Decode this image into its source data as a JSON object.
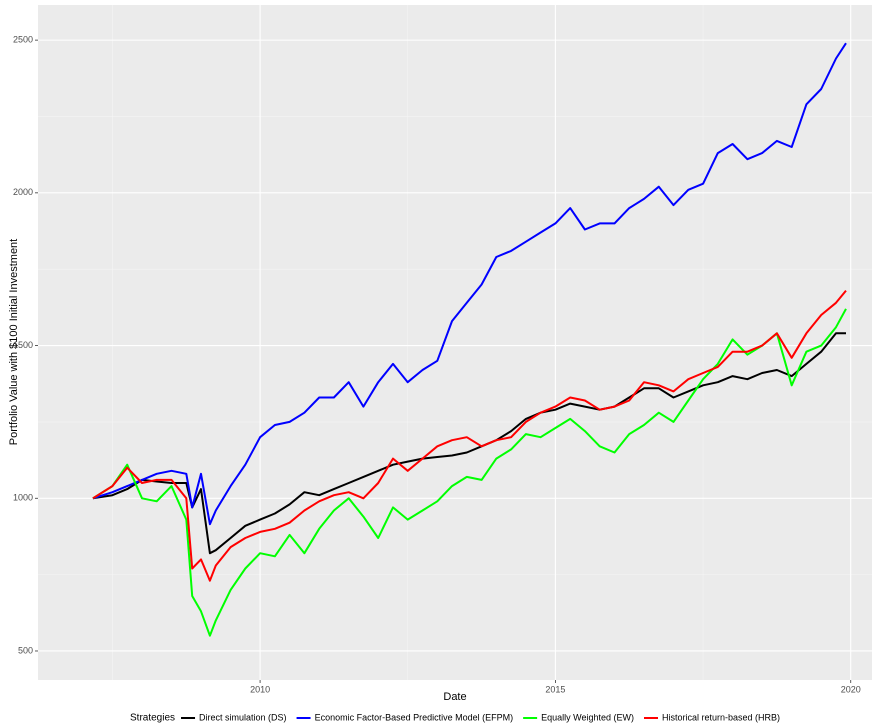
{
  "chart_data": {
    "type": "line",
    "x_label": "Date",
    "y_label": "Portfolio Value with $100 Initial Investment",
    "legend_title": "Strategies",
    "legend_position": "bottom",
    "grid": true,
    "xlim": [
      2006.24,
      2020.36
    ],
    "ylim": [
      405,
      2615
    ],
    "xticks": [
      2010,
      2015,
      2020
    ],
    "yticks": [
      500,
      1000,
      1500,
      2000,
      2500
    ],
    "x": [
      2007.17,
      2007.5,
      2007.75,
      2008,
      2008.25,
      2008.5,
      2008.75,
      2008.85,
      2009,
      2009.15,
      2009.25,
      2009.5,
      2009.75,
      2010,
      2010.25,
      2010.5,
      2010.75,
      2011,
      2011.25,
      2011.5,
      2011.75,
      2012,
      2012.25,
      2012.5,
      2012.75,
      2013,
      2013.25,
      2013.5,
      2013.75,
      2014,
      2014.25,
      2014.5,
      2014.75,
      2015,
      2015.25,
      2015.5,
      2015.75,
      2016,
      2016.25,
      2016.5,
      2016.75,
      2017,
      2017.25,
      2017.5,
      2017.75,
      2018,
      2018.25,
      2018.5,
      2018.75,
      2019,
      2019.25,
      2019.5,
      2019.75,
      2019.92
    ],
    "series": [
      {
        "name": "Direct simulation (DS)",
        "color": "#000000",
        "values": [
          1000,
          1010,
          1030,
          1060,
          1055,
          1050,
          1050,
          970,
          1030,
          820,
          830,
          870,
          910,
          930,
          950,
          980,
          1020,
          1010,
          1030,
          1050,
          1070,
          1090,
          1110,
          1120,
          1130,
          1135,
          1140,
          1150,
          1170,
          1190,
          1220,
          1260,
          1280,
          1290,
          1310,
          1300,
          1290,
          1300,
          1330,
          1360,
          1360,
          1330,
          1350,
          1370,
          1380,
          1400,
          1390,
          1410,
          1420,
          1400,
          1440,
          1480,
          1540,
          1540
        ]
      },
      {
        "name": "Economic Factor-Based Predictive Model (EFPM)",
        "color": "#0000ff",
        "values": [
          1000,
          1020,
          1040,
          1060,
          1080,
          1090,
          1080,
          970,
          1080,
          915,
          960,
          1040,
          1110,
          1200,
          1240,
          1250,
          1280,
          1330,
          1330,
          1380,
          1300,
          1380,
          1440,
          1380,
          1420,
          1450,
          1580,
          1640,
          1700,
          1790,
          1810,
          1840,
          1870,
          1900,
          1950,
          1880,
          1900,
          1900,
          1950,
          1980,
          2020,
          1960,
          2010,
          2030,
          2130,
          2160,
          2110,
          2130,
          2170,
          2150,
          2290,
          2340,
          2440,
          2490
        ]
      },
      {
        "name": "Equally Weighted (EW)",
        "color": "#00ff00",
        "values": [
          1000,
          1040,
          1110,
          1000,
          990,
          1040,
          930,
          680,
          630,
          550,
          600,
          700,
          770,
          820,
          810,
          880,
          820,
          900,
          960,
          1000,
          940,
          870,
          970,
          930,
          960,
          990,
          1040,
          1070,
          1060,
          1130,
          1160,
          1210,
          1200,
          1230,
          1260,
          1220,
          1170,
          1150,
          1210,
          1240,
          1280,
          1250,
          1320,
          1390,
          1440,
          1520,
          1470,
          1500,
          1540,
          1370,
          1480,
          1500,
          1560,
          1620
        ]
      },
      {
        "name": "Historical return-based (HRB)",
        "color": "#ff0000",
        "values": [
          1000,
          1040,
          1100,
          1050,
          1060,
          1060,
          1000,
          770,
          800,
          730,
          780,
          840,
          870,
          890,
          900,
          920,
          960,
          990,
          1010,
          1020,
          1000,
          1050,
          1130,
          1090,
          1130,
          1170,
          1190,
          1200,
          1170,
          1190,
          1200,
          1250,
          1280,
          1300,
          1330,
          1320,
          1290,
          1300,
          1320,
          1380,
          1370,
          1350,
          1390,
          1410,
          1430,
          1480,
          1480,
          1500,
          1540,
          1460,
          1540,
          1600,
          1640,
          1680
        ]
      }
    ]
  }
}
